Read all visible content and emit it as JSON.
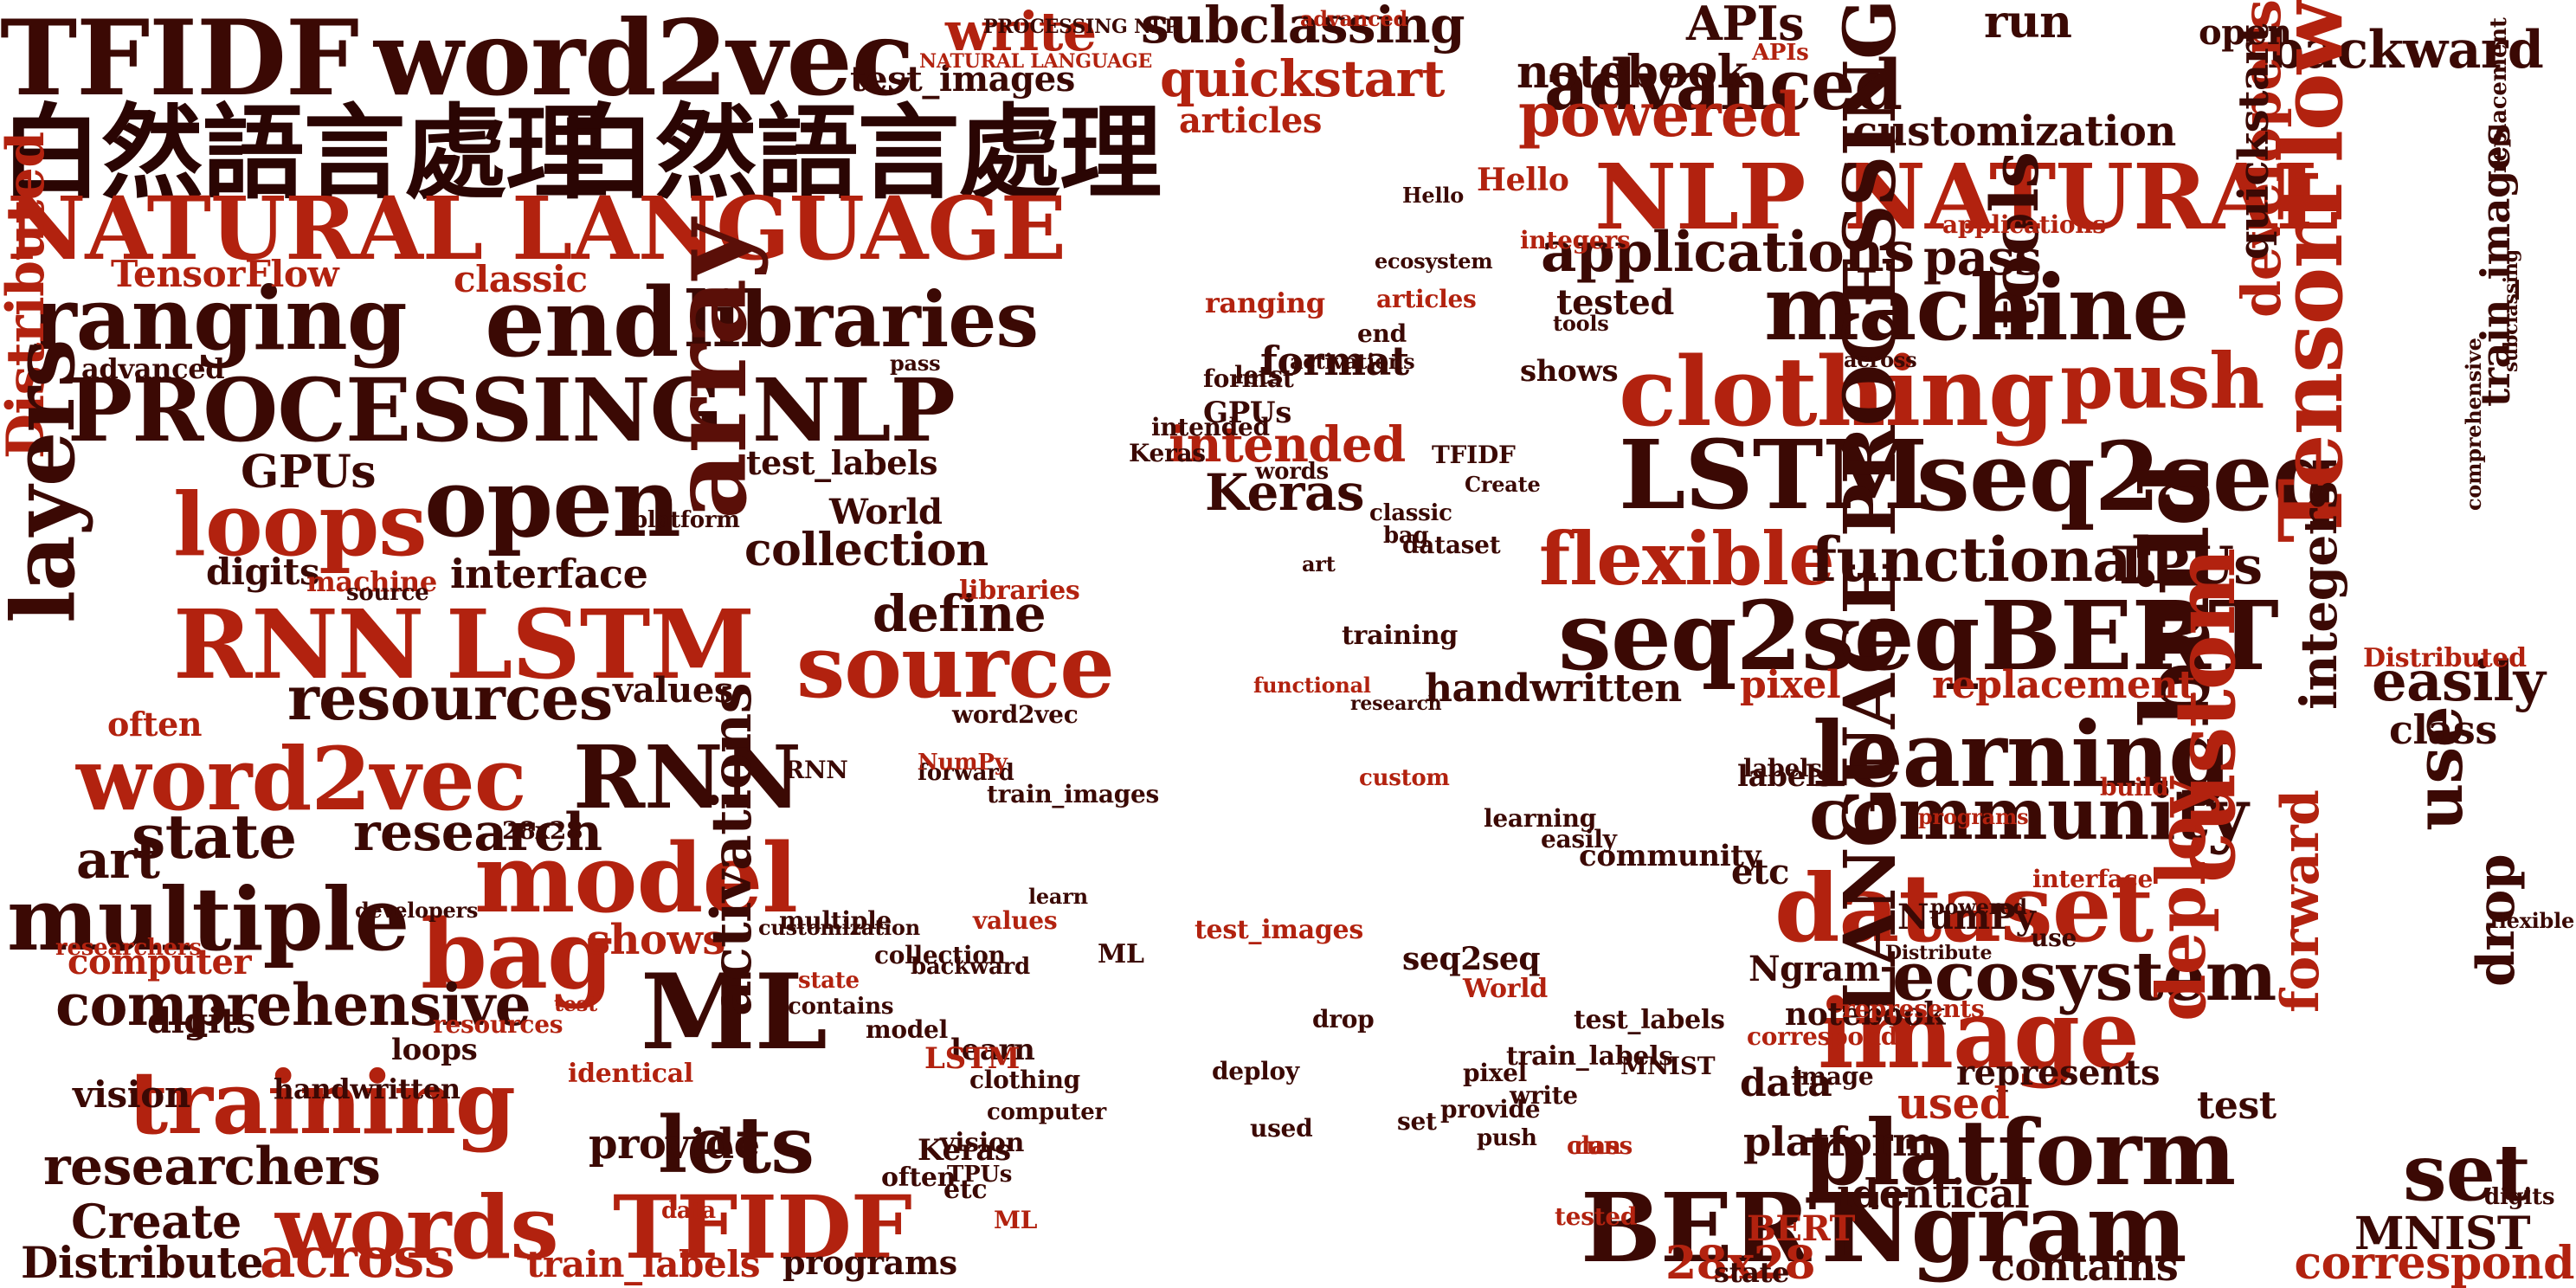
{
  "palette": [
    "#3b0904",
    "#5a0f08",
    "#8b1a0d",
    "#b2220f",
    "#c8301a",
    "#7a1208",
    "#2a0503"
  ],
  "wordcloud": {
    "words": [
      {
        "text": "TFIDF",
        "c": 0
      },
      {
        "text": "word2vec",
        "c": 0
      },
      {
        "text": "白然語言處理",
        "c": 6
      },
      {
        "text": "白然語言處理",
        "c": 6
      },
      {
        "text": "NATURAL LANGUAGE",
        "c": 3
      },
      {
        "text": "ranging",
        "c": 0
      },
      {
        "text": "end",
        "c": 0
      },
      {
        "text": "libraries",
        "c": 0
      },
      {
        "text": "PROCESSING NLP",
        "c": 0
      },
      {
        "text": "Distributed",
        "c": 3
      },
      {
        "text": "open",
        "c": 0
      },
      {
        "text": "loops",
        "c": 3
      },
      {
        "text": "layers",
        "c": 0
      },
      {
        "text": "array",
        "c": 1
      },
      {
        "text": "RNN",
        "c": 3
      },
      {
        "text": "LSTM",
        "c": 3
      },
      {
        "text": "source",
        "c": 3
      },
      {
        "text": "resources",
        "c": 0
      },
      {
        "text": "word2vec",
        "c": 3
      },
      {
        "text": "RNN",
        "c": 0
      },
      {
        "text": "state",
        "c": 0
      },
      {
        "text": "research",
        "c": 0
      },
      {
        "text": "model",
        "c": 3
      },
      {
        "text": "multiple",
        "c": 0
      },
      {
        "text": "bag",
        "c": 3
      },
      {
        "text": "ML",
        "c": 0
      },
      {
        "text": "comprehensive",
        "c": 0
      },
      {
        "text": "training",
        "c": 3
      },
      {
        "text": "lets",
        "c": 0
      },
      {
        "text": "researchers",
        "c": 0
      },
      {
        "text": "words",
        "c": 3
      },
      {
        "text": "TFIDF",
        "c": 3
      },
      {
        "text": "Create",
        "c": 0
      },
      {
        "text": "Distribute",
        "c": 0
      },
      {
        "text": "across",
        "c": 3
      },
      {
        "text": "train_labels",
        "c": 3
      },
      {
        "text": "programs",
        "c": 0
      },
      {
        "text": "collection",
        "c": 0
      },
      {
        "text": "define",
        "c": 0
      },
      {
        "text": "interface",
        "c": 0
      },
      {
        "text": "write",
        "c": 3
      },
      {
        "text": "test_images",
        "c": 0
      },
      {
        "text": "subclassing",
        "c": 0
      },
      {
        "text": "quickstart",
        "c": 3
      },
      {
        "text": "articles",
        "c": 3
      },
      {
        "text": "intended",
        "c": 3
      },
      {
        "text": "Keras",
        "c": 0
      },
      {
        "text": "format",
        "c": 0
      },
      {
        "text": "advanced",
        "c": 0
      },
      {
        "text": "backward",
        "c": 0
      },
      {
        "text": "notebook",
        "c": 0
      },
      {
        "text": "powered",
        "c": 3
      },
      {
        "text": "customization",
        "c": 0
      },
      {
        "text": "NLP",
        "c": 3
      },
      {
        "text": "NATURAL",
        "c": 3
      },
      {
        "text": "applications",
        "c": 0
      },
      {
        "text": "pass",
        "c": 0
      },
      {
        "text": "machine",
        "c": 0
      },
      {
        "text": "clothing",
        "c": 3
      },
      {
        "text": "push",
        "c": 3
      },
      {
        "text": "LSTM",
        "c": 0
      },
      {
        "text": "seq2seq",
        "c": 0
      },
      {
        "text": "flexible",
        "c": 3
      },
      {
        "text": "functional",
        "c": 0
      },
      {
        "text": "TPUs",
        "c": 0
      },
      {
        "text": "seq2seq",
        "c": 0
      },
      {
        "text": "BERT",
        "c": 0
      },
      {
        "text": "learning",
        "c": 0
      },
      {
        "text": "community",
        "c": 0
      },
      {
        "text": "dataset",
        "c": 3
      },
      {
        "text": "ecosystem",
        "c": 0
      },
      {
        "text": "image",
        "c": 3
      },
      {
        "text": "platform",
        "c": 0
      },
      {
        "text": "deploy",
        "c": 3
      },
      {
        "text": "BERT",
        "c": 0
      },
      {
        "text": "Ngram",
        "c": 0
      },
      {
        "text": "28x28",
        "c": 3
      },
      {
        "text": "contains",
        "c": 0
      },
      {
        "text": "LANGUAGE PROCESSING",
        "c": 0
      },
      {
        "text": "build",
        "c": 0
      },
      {
        "text": "TensorFlow",
        "c": 3
      },
      {
        "text": "developers",
        "c": 3
      },
      {
        "text": "custom",
        "c": 3
      },
      {
        "text": "use",
        "c": 0
      },
      {
        "text": "forward",
        "c": 3
      },
      {
        "text": "drop",
        "c": 0
      },
      {
        "text": "set",
        "c": 0
      },
      {
        "text": "MNIST",
        "c": 0
      },
      {
        "text": "correspond",
        "c": 3
      },
      {
        "text": "easily",
        "c": 0
      },
      {
        "text": "class",
        "c": 0
      },
      {
        "text": "handwritten",
        "c": 0
      },
      {
        "text": "pixel",
        "c": 3
      },
      {
        "text": "replacement",
        "c": 3
      },
      {
        "text": "tools",
        "c": 0
      },
      {
        "text": "APIs",
        "c": 0
      },
      {
        "text": "run",
        "c": 0
      },
      {
        "text": "advanced",
        "c": 0
      },
      {
        "text": "Hello",
        "c": 3
      },
      {
        "text": "tested",
        "c": 0
      },
      {
        "text": "GPUs",
        "c": 0
      },
      {
        "text": "digits",
        "c": 0
      },
      {
        "text": "computer",
        "c": 3
      },
      {
        "text": "vision",
        "c": 0
      },
      {
        "text": "labels",
        "c": 0
      },
      {
        "text": "shows",
        "c": 3
      },
      {
        "text": "activations",
        "c": 0
      },
      {
        "text": "identical",
        "c": 0
      },
      {
        "text": "provide",
        "c": 0
      },
      {
        "text": "represents",
        "c": 0
      },
      {
        "text": "NumPy",
        "c": 0
      },
      {
        "text": "integers",
        "c": 0
      },
      {
        "text": "World",
        "c": 0
      },
      {
        "text": "often",
        "c": 3
      },
      {
        "text": "etc",
        "c": 0
      },
      {
        "text": "values",
        "c": 0
      },
      {
        "text": "test_labels",
        "c": 0
      },
      {
        "text": "train_images",
        "c": 0
      },
      {
        "text": "classic",
        "c": 3
      },
      {
        "text": "platform",
        "c": 0
      },
      {
        "text": "digits",
        "c": 0
      },
      {
        "text": "test",
        "c": 0
      },
      {
        "text": "data",
        "c": 0
      },
      {
        "text": "used",
        "c": 3
      },
      {
        "text": "art",
        "c": 0
      },
      {
        "text": "Ngram",
        "c": 0
      },
      {
        "text": "BERT",
        "c": 3
      },
      {
        "text": "open",
        "c": 0
      },
      {
        "text": "quickstart",
        "c": 0
      },
      {
        "text": "TensorFlow",
        "c": 3
      },
      {
        "text": "train_images",
        "c": 0
      },
      {
        "text": "learn",
        "c": 0
      },
      {
        "text": "Keras",
        "c": 0
      },
      {
        "text": "loops",
        "c": 0
      },
      {
        "text": "state",
        "c": 0
      },
      {
        "text": "ranging",
        "c": 3
      },
      {
        "text": "community",
        "c": 0
      },
      {
        "text": "seq2seq",
        "c": 0
      },
      {
        "text": "LSTM",
        "c": 3
      },
      {
        "text": "ML",
        "c": 0
      },
      {
        "text": "notebook",
        "c": 0
      },
      {
        "text": "activations",
        "c": 0
      },
      {
        "text": "Distributed",
        "c": 3
      },
      {
        "text": "training",
        "c": 0
      },
      {
        "text": "articles",
        "c": 3
      },
      {
        "text": "GPUs",
        "c": 0
      },
      {
        "text": "ecosystem",
        "c": 0
      },
      {
        "text": "functional",
        "c": 3
      },
      {
        "text": "research",
        "c": 0
      },
      {
        "text": "dataset",
        "c": 0
      },
      {
        "text": "end",
        "c": 0
      },
      {
        "text": "shows",
        "c": 0
      },
      {
        "text": "lets",
        "c": 0
      },
      {
        "text": "words",
        "c": 0
      },
      {
        "text": "TFIDF",
        "c": 0
      },
      {
        "text": "Create",
        "c": 0
      },
      {
        "text": "classic",
        "c": 0
      },
      {
        "text": "bag",
        "c": 0
      },
      {
        "text": "art",
        "c": 0
      },
      {
        "text": "word2vec",
        "c": 0
      },
      {
        "text": "RNN",
        "c": 0
      },
      {
        "text": "custom",
        "c": 3
      },
      {
        "text": "collection",
        "c": 0
      },
      {
        "text": "advanced",
        "c": 3
      },
      {
        "text": "Hello",
        "c": 0
      },
      {
        "text": "PROCESSING NLP",
        "c": 0
      },
      {
        "text": "NATURAL LANGUAGE",
        "c": 3
      },
      {
        "text": "integers",
        "c": 3
      },
      {
        "text": "tools",
        "c": 0
      },
      {
        "text": "28x28",
        "c": 0
      },
      {
        "text": "identical",
        "c": 3
      },
      {
        "text": "often",
        "c": 0
      },
      {
        "text": "vision",
        "c": 0
      },
      {
        "text": "World",
        "c": 3
      },
      {
        "text": "etc",
        "c": 0
      },
      {
        "text": "values",
        "c": 3
      },
      {
        "text": "test_labels",
        "c": 0
      },
      {
        "text": "train_labels",
        "c": 0
      },
      {
        "text": "test_images",
        "c": 3
      },
      {
        "text": "drop",
        "c": 0
      },
      {
        "text": "write",
        "c": 0
      },
      {
        "text": "run",
        "c": 3
      },
      {
        "text": "correspond",
        "c": 3
      },
      {
        "text": "MNIST",
        "c": 0
      },
      {
        "text": "pixel",
        "c": 0
      },
      {
        "text": "used",
        "c": 0
      },
      {
        "text": "deploy",
        "c": 0
      },
      {
        "text": "image",
        "c": 0
      },
      {
        "text": "tested",
        "c": 3
      },
      {
        "text": "set",
        "c": 0
      },
      {
        "text": "labels",
        "c": 0
      },
      {
        "text": "class",
        "c": 3
      },
      {
        "text": "easily",
        "c": 0
      },
      {
        "text": "format",
        "c": 0
      },
      {
        "text": "intended",
        "c": 0
      },
      {
        "text": "Keras",
        "c": 0
      },
      {
        "text": "applications",
        "c": 3
      },
      {
        "text": "platform",
        "c": 0
      },
      {
        "text": "backward",
        "c": 0
      },
      {
        "text": "forward",
        "c": 0
      },
      {
        "text": "APIs",
        "c": 3
      },
      {
        "text": "NumPy",
        "c": 3
      },
      {
        "text": "TPUs",
        "c": 0
      },
      {
        "text": "provide",
        "c": 0
      },
      {
        "text": "handwritten",
        "c": 0
      },
      {
        "text": "computer",
        "c": 0
      },
      {
        "text": "machine",
        "c": 3
      },
      {
        "text": "pass",
        "c": 0
      },
      {
        "text": "push",
        "c": 0
      },
      {
        "text": "data",
        "c": 3
      },
      {
        "text": "learning",
        "c": 0
      },
      {
        "text": "clothing",
        "c": 0
      },
      {
        "text": "represents",
        "c": 3
      },
      {
        "text": "model",
        "c": 0
      },
      {
        "text": "multiple",
        "c": 0
      },
      {
        "text": "researchers",
        "c": 3
      },
      {
        "text": "comprehensive",
        "c": 0
      },
      {
        "text": "replacement",
        "c": 0
      },
      {
        "text": "resources",
        "c": 3
      },
      {
        "text": "source",
        "c": 0
      },
      {
        "text": "state",
        "c": 3
      },
      {
        "text": "contains",
        "c": 0
      },
      {
        "text": "libraries",
        "c": 3
      },
      {
        "text": "developers",
        "c": 0
      },
      {
        "text": "test",
        "c": 3
      },
      {
        "text": "customization",
        "c": 0
      },
      {
        "text": "flexible",
        "c": 0
      },
      {
        "text": "interface",
        "c": 3
      },
      {
        "text": "digits",
        "c": 0
      },
      {
        "text": "subclassing",
        "c": 0
      },
      {
        "text": "programs",
        "c": 3
      },
      {
        "text": "across",
        "c": 0
      },
      {
        "text": "Distribute",
        "c": 0
      },
      {
        "text": "powered",
        "c": 0
      },
      {
        "text": "build",
        "c": 3
      },
      {
        "text": "use",
        "c": 0
      },
      {
        "text": "ML",
        "c": 3
      },
      {
        "text": "learn",
        "c": 0
      }
    ]
  }
}
